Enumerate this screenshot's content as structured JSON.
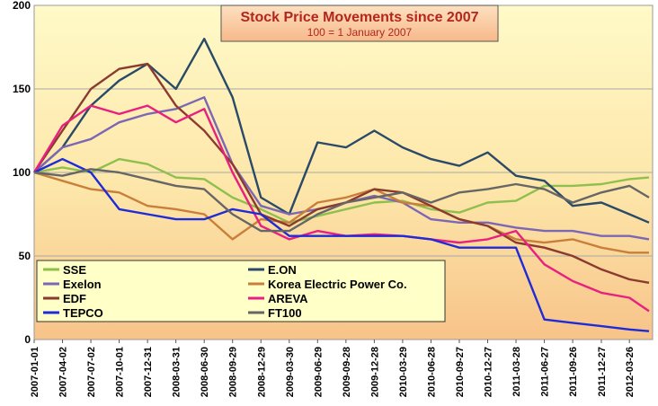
{
  "chart_data": {
    "type": "line",
    "title": "Stock Price Movements since 2007",
    "subtitle": "100 = 1 January 2007",
    "xlabel": "",
    "ylabel": "",
    "ylim": [
      0,
      200
    ],
    "yticks": [
      0,
      50,
      100,
      150,
      200
    ],
    "grid": true,
    "legend_position": "bottom-left",
    "x_ticks": [
      "2007-01-01",
      "2007-04-02",
      "2007-07-02",
      "2007-10-01",
      "2007-12-31",
      "2008-03-31",
      "2008-06-30",
      "2008-09-29",
      "2008-12-29",
      "2009-03-30",
      "2009-06-29",
      "2009-09-28",
      "2009-12-28",
      "2010-03-29",
      "2010-06-28",
      "2010-09-27",
      "2010-12-27",
      "2011-03-28",
      "2011-06-27",
      "2011-09-26",
      "2011-12-27",
      "2012-03-26"
    ],
    "x": [
      "2007-01-01",
      "2007-04-02",
      "2007-07-02",
      "2007-10-01",
      "2007-12-31",
      "2008-03-31",
      "2008-06-30",
      "2008-09-29",
      "2008-12-29",
      "2009-03-30",
      "2009-06-29",
      "2009-09-28",
      "2009-12-28",
      "2010-03-29",
      "2010-06-28",
      "2010-09-27",
      "2010-12-27",
      "2011-03-28",
      "2011-06-27",
      "2011-09-26",
      "2011-12-27",
      "2012-03-26",
      "2012-05-28"
    ],
    "series": [
      {
        "name": "SSE",
        "color": "#8fbf4f",
        "values": [
          100,
          103,
          100,
          108,
          105,
          97,
          96,
          85,
          78,
          70,
          74,
          78,
          82,
          83,
          78,
          76,
          82,
          83,
          92,
          92,
          93,
          96,
          97
        ]
      },
      {
        "name": "E.ON",
        "color": "#2a4a68",
        "values": [
          100,
          115,
          140,
          155,
          165,
          150,
          180,
          145,
          85,
          75,
          118,
          115,
          125,
          115,
          108,
          104,
          112,
          98,
          95,
          80,
          82,
          75,
          70
        ]
      },
      {
        "name": "Exelon",
        "color": "#7b67b3",
        "values": [
          100,
          115,
          120,
          130,
          135,
          138,
          145,
          105,
          80,
          75,
          78,
          82,
          86,
          82,
          72,
          70,
          70,
          67,
          65,
          65,
          62,
          62,
          60
        ]
      },
      {
        "name": "Korea Electric Power Co.",
        "color": "#c97f3a",
        "values": [
          100,
          95,
          90,
          88,
          80,
          78,
          75,
          60,
          72,
          70,
          82,
          85,
          90,
          82,
          80,
          72,
          68,
          60,
          58,
          60,
          55,
          52,
          52
        ]
      },
      {
        "name": "EDF",
        "color": "#8b3a2e",
        "values": [
          100,
          125,
          150,
          162,
          165,
          140,
          125,
          105,
          75,
          68,
          78,
          82,
          90,
          88,
          80,
          72,
          68,
          58,
          55,
          50,
          42,
          36,
          34
        ]
      },
      {
        "name": "AREVA",
        "color": "#e8207f",
        "values": [
          100,
          128,
          140,
          135,
          140,
          130,
          138,
          100,
          68,
          60,
          65,
          62,
          63,
          62,
          60,
          58,
          60,
          65,
          45,
          35,
          28,
          25,
          17
        ]
      },
      {
        "name": "TEPCO",
        "color": "#1f2bd8",
        "values": [
          100,
          108,
          100,
          78,
          75,
          72,
          72,
          78,
          75,
          62,
          62,
          62,
          62,
          62,
          60,
          55,
          55,
          55,
          12,
          10,
          8,
          6,
          5
        ]
      },
      {
        "name": "FT100",
        "color": "#666666",
        "values": [
          100,
          98,
          102,
          100,
          96,
          92,
          90,
          75,
          65,
          65,
          75,
          82,
          85,
          88,
          82,
          88,
          90,
          93,
          90,
          82,
          88,
          92,
          85
        ]
      }
    ]
  }
}
